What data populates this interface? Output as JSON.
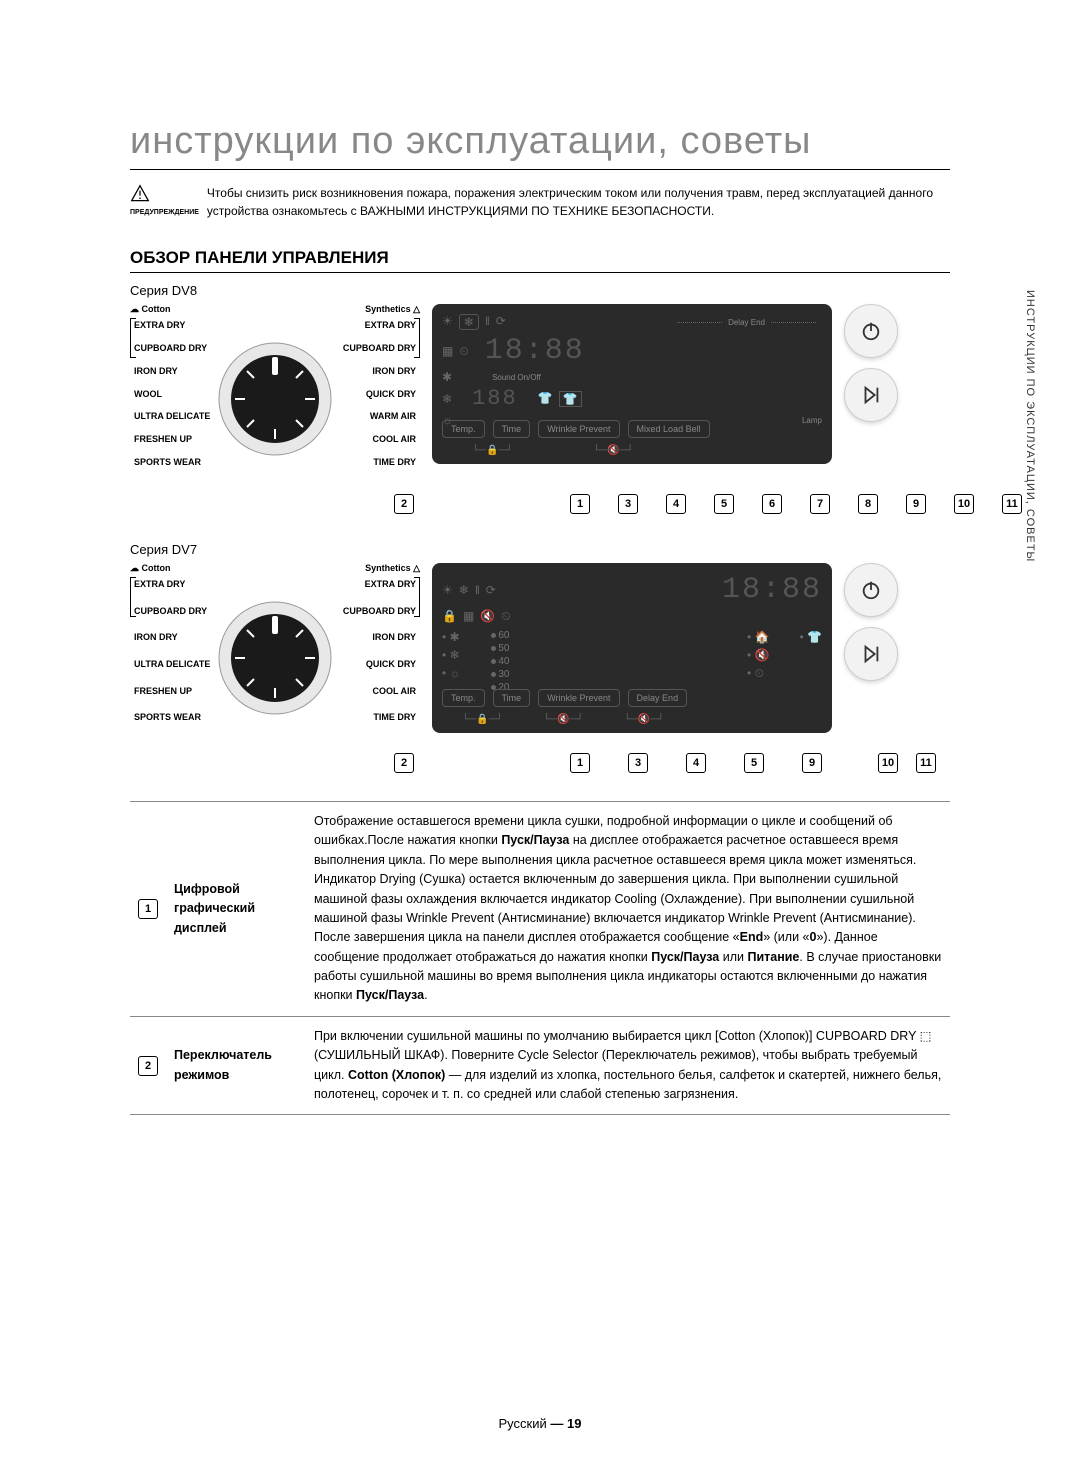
{
  "side_tab": "ИНСТРУКЦИИ ПО ЭКСПЛУАТАЦИИ, СОВЕТЫ",
  "title": "инструкции по эксплуатации, советы",
  "warning_label": "ПРЕДУПРЕЖДЕНИЕ",
  "warning_text": "Чтобы снизить риск возникновения пожара, поражения электрическим током или получения травм, перед эксплуатацией данного устройства ознакомьтесь с ВАЖНЫМИ ИНСТРУКЦИЯМИ ПО ТЕХНИКЕ БЕЗОПАСНОСТИ.",
  "section_heading": "ОБЗОР ПАНЕЛИ УПРАВЛЕНИЯ",
  "series": {
    "dv8": {
      "label": "Серия DV8",
      "cotton_header": "Cotton",
      "synth_header": "Synthetics",
      "left_labels": [
        "EXTRA DRY",
        "CUPBOARD DRY",
        "IRON DRY",
        "WOOL",
        "ULTRA DELICATE",
        "FRESHEN UP",
        "SPORTS WEAR"
      ],
      "right_labels": [
        "EXTRA DRY",
        "CUPBOARD DRY",
        "IRON DRY",
        "QUICK DRY",
        "WARM AIR",
        "COOL AIR",
        "TIME DRY"
      ],
      "display": {
        "time_big": "18:88",
        "time_small": "188",
        "delay_end": "Delay End",
        "sound": "Sound On/Off",
        "lamp": "Lamp",
        "buttons": [
          "Temp.",
          "Time",
          "Wrinkle Prevent",
          "Mixed Load Bell"
        ]
      },
      "callouts": [
        "2",
        "1",
        "3",
        "4",
        "5",
        "6",
        "7",
        "8",
        "9",
        "10",
        "11"
      ]
    },
    "dv7": {
      "label": "Серия DV7",
      "cotton_header": "Cotton",
      "synth_header": "Synthetics",
      "left_labels": [
        "EXTRA DRY",
        "CUPBOARD DRY",
        "IRON DRY",
        "ULTRA DELICATE",
        "FRESHEN UP",
        "SPORTS WEAR"
      ],
      "right_labels": [
        "EXTRA DRY",
        "CUPBOARD DRY",
        "IRON DRY",
        "QUICK DRY",
        "COOL AIR",
        "TIME DRY"
      ],
      "display": {
        "time_big": "18:88",
        "levels": [
          "60",
          "50",
          "40",
          "30",
          "20"
        ],
        "buttons": [
          "Temp.",
          "Time",
          "Wrinkle Prevent",
          "Delay End"
        ]
      },
      "callouts": [
        "2",
        "1",
        "3",
        "4",
        "5",
        "9",
        "10",
        "11"
      ]
    }
  },
  "table": {
    "rows": [
      {
        "num": "1",
        "name": "Цифровой графический дисплей",
        "desc_parts": [
          {
            "t": "Отображение оставшегося времени цикла сушки, подробной информации о цикле и сообщений об ошибках."
          },
          {
            "t": "После нажатия кнопки "
          },
          {
            "b": "Пуск/Пауза"
          },
          {
            "t": " на дисплее отображается расчетное оставшееся время выполнения цикла. По мере выполнения цикла расчетное оставшееся время цикла может изменяться."
          },
          {
            "t": " Индикатор Drying (Сушка) остается включенным до завершения цикла."
          },
          {
            "t": " При выполнении сушильной машиной фазы охлаждения включается индикатор Cooling (Охлаждение). При выполнении сушильной машиной фазы Wrinkle Prevent (Антисминание) включается индикатор Wrinkle Prevent (Антисминание)."
          },
          {
            "t": " После завершения цикла на панели дисплея отображается сообщение «"
          },
          {
            "b": "End"
          },
          {
            "t": "» (или «"
          },
          {
            "b": "0"
          },
          {
            "t": "»). Данное сообщение продолжает отображаться до нажатия кнопки "
          },
          {
            "b": "Пуск/Пауза"
          },
          {
            "t": " или "
          },
          {
            "b": "Питание"
          },
          {
            "t": ". В случае приостановки работы сушильной машины во время выполнения цикла индикаторы остаются включенными до нажатия кнопки "
          },
          {
            "b": "Пуск/Пауза"
          },
          {
            "t": "."
          }
        ]
      },
      {
        "num": "2",
        "name": "Переключатель режимов",
        "desc_parts": [
          {
            "t": "При включении сушильной машины по умолчанию выбирается цикл [Cotton (Хлопок)] CUPBOARD DRY "
          },
          {
            "icon": "tray"
          },
          {
            "t": " (СУШИЛЬНЫЙ ШКАФ)."
          },
          {
            "t": " Поверните Cycle Selector (Переключатель режимов), чтобы выбрать требуемый цикл."
          },
          {
            "t": " "
          },
          {
            "b": "Cotton (Хлопок)"
          },
          {
            "t": " — для изделий из хлопка, постельного белья, салфеток и скатертей, нижнего белья, полотенец, сорочек и т. п. со средней или слабой степенью загрязнения."
          }
        ]
      }
    ]
  },
  "footer": {
    "lang": "Русский",
    "sep": "—",
    "page": "19"
  },
  "colors": {
    "panel_bg": "#2a2a2a",
    "title_gray": "#888888"
  }
}
